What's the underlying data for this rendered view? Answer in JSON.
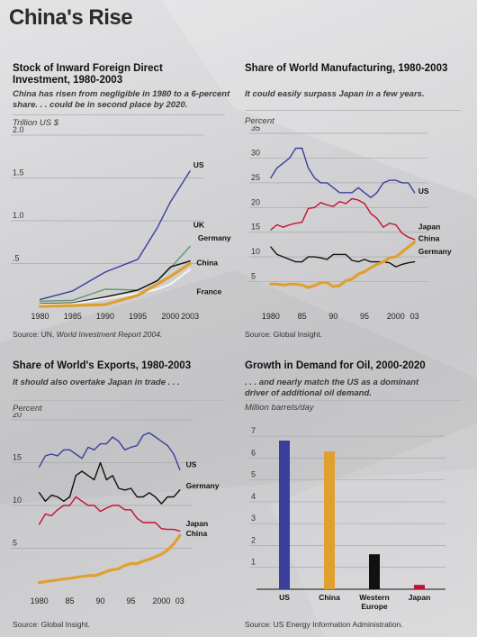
{
  "page": {
    "title": "China's Rise"
  },
  "panels": {
    "fdi": {
      "title_line1": "Stock of Inward Foreign Direct",
      "title_line2": "Investment, 1980-2003",
      "subtitle_line1": "China has risen from negligible in 1980 to a 6-percent",
      "subtitle_line2": "share. . . could be in second place by 2020.",
      "unit": "Trillion US $",
      "source_prefix": "Source: UN, ",
      "source_italic": "World Investment Report 2004."
    },
    "manufacturing": {
      "title": "Share of World Manufacturing, 1980-2003",
      "subtitle": "It could easily surpass Japan in a few years.",
      "unit": "Percent",
      "source": "Source: Global Insight."
    },
    "exports": {
      "title": "Share of World's Exports, 1980-2003",
      "subtitle": "It should also overtake Japan in trade . . .",
      "unit": "Percent",
      "source": "Source: Global Insight."
    },
    "oil": {
      "title": "Growth in Demand for Oil, 2000-2020",
      "subtitle_line1": ". . . and nearly match the US as a dominant",
      "subtitle_line2": "driver of additional oil demand.",
      "unit": "Million barrels/day",
      "source": "Source: US Energy Information Administration."
    }
  },
  "colors": {
    "US": "#3a3f9e",
    "UK": "#5a9a6a",
    "Germany": "#111111",
    "China": "#e0a030",
    "France": "#f4f4f4",
    "Japan": "#c4122f"
  },
  "chart_data": [
    {
      "id": "fdi",
      "type": "line",
      "ylabel": "Trillion US $",
      "ylim": [
        0,
        2.0
      ],
      "yticks": [
        {
          "v": 0.5,
          "label": ".5"
        },
        {
          "v": 1.0,
          "label": "1.0"
        },
        {
          "v": 1.5,
          "label": "1.5"
        },
        {
          "v": 2.0,
          "label": "2.0"
        }
      ],
      "xlim": [
        1978,
        2004.5
      ],
      "xticks": [
        {
          "v": 1980,
          "label": "1980"
        },
        {
          "v": 1985,
          "label": "1985"
        },
        {
          "v": 1990,
          "label": "1990"
        },
        {
          "v": 1995,
          "label": "1995"
        },
        {
          "v": 2000,
          "label": "2000"
        },
        {
          "v": 2003,
          "label": "2003"
        }
      ],
      "series": [
        {
          "name": "US",
          "color": "#3a3f9e",
          "width": 1.4,
          "x": [
            1980,
            1985,
            1990,
            1995,
            1998,
            2000,
            2003
          ],
          "y": [
            0.08,
            0.18,
            0.4,
            0.55,
            0.92,
            1.22,
            1.58
          ]
        },
        {
          "name": "UK",
          "color": "#5a9a6a",
          "width": 1.4,
          "x": [
            1980,
            1985,
            1990,
            1995,
            1998,
            2000,
            2003
          ],
          "y": [
            0.06,
            0.07,
            0.2,
            0.19,
            0.3,
            0.45,
            0.7
          ]
        },
        {
          "name": "Germany",
          "color": "#111111",
          "width": 1.4,
          "x": [
            1980,
            1985,
            1990,
            1995,
            1998,
            2000,
            2003
          ],
          "y": [
            0.03,
            0.04,
            0.11,
            0.19,
            0.3,
            0.46,
            0.53
          ]
        },
        {
          "name": "France",
          "color": "#f4f4f4",
          "width": 2.0,
          "x": [
            1980,
            1985,
            1990,
            1995,
            1998,
            2000,
            2003
          ],
          "y": [
            0.02,
            0.03,
            0.09,
            0.15,
            0.2,
            0.26,
            0.43
          ]
        },
        {
          "name": "China",
          "color": "#e0a030",
          "width": 3.2,
          "x": [
            1980,
            1985,
            1990,
            1995,
            1998,
            2000,
            2003
          ],
          "y": [
            0.0,
            0.01,
            0.02,
            0.13,
            0.26,
            0.35,
            0.5
          ]
        }
      ],
      "labels": [
        {
          "text": "US",
          "x": 2003.5,
          "y": 1.62
        },
        {
          "text": "UK",
          "x": 2003.5,
          "y": 0.92
        },
        {
          "text": "Germany",
          "x": 2004.2,
          "y": 0.77
        },
        {
          "text": "China",
          "x": 2004.0,
          "y": 0.48
        },
        {
          "text": "France",
          "x": 2004.0,
          "y": 0.14
        }
      ]
    },
    {
      "id": "manufacturing",
      "type": "line",
      "ylabel": "Percent",
      "ylim": [
        0,
        35
      ],
      "yticks": [
        {
          "v": 5,
          "label": "5"
        },
        {
          "v": 10,
          "label": "10"
        },
        {
          "v": 15,
          "label": "15"
        },
        {
          "v": 20,
          "label": "20"
        },
        {
          "v": 25,
          "label": "25"
        },
        {
          "v": 30,
          "label": "30"
        },
        {
          "v": 35,
          "label": "35"
        }
      ],
      "xlim": [
        1978,
        2004.5
      ],
      "xticks": [
        {
          "v": 1980,
          "label": "1980"
        },
        {
          "v": 1985,
          "label": "85"
        },
        {
          "v": 1990,
          "label": "90"
        },
        {
          "v": 1995,
          "label": "95"
        },
        {
          "v": 2000,
          "label": "2000"
        },
        {
          "v": 2003,
          "label": "03"
        }
      ],
      "series": [
        {
          "name": "US",
          "color": "#3a3f9e",
          "width": 1.4,
          "x": [
            1980,
            1981,
            1982,
            1983,
            1984,
            1985,
            1986,
            1987,
            1988,
            1989,
            1990,
            1991,
            1992,
            1993,
            1994,
            1995,
            1996,
            1997,
            1998,
            1999,
            2000,
            2001,
            2002,
            2003
          ],
          "y": [
            26,
            28,
            29,
            30,
            32,
            32,
            28,
            26,
            25,
            25,
            24,
            23,
            23,
            23,
            24,
            23,
            22,
            23,
            25,
            25.5,
            25.5,
            25,
            25,
            23
          ]
        },
        {
          "name": "Japan",
          "color": "#c4122f",
          "width": 1.4,
          "x": [
            1980,
            1981,
            1982,
            1983,
            1984,
            1985,
            1986,
            1987,
            1988,
            1989,
            1990,
            1991,
            1992,
            1993,
            1994,
            1995,
            1996,
            1997,
            1998,
            1999,
            2000,
            2001,
            2002,
            2003
          ],
          "y": [
            15.5,
            16.5,
            16,
            16.5,
            16.8,
            17,
            19.8,
            20,
            21,
            20.5,
            20.2,
            21.2,
            20.8,
            21.8,
            21.5,
            20.8,
            18.8,
            17.8,
            16,
            16.8,
            16.5,
            14.8,
            14,
            13.5
          ]
        },
        {
          "name": "Germany",
          "color": "#111111",
          "width": 1.4,
          "x": [
            1980,
            1981,
            1982,
            1983,
            1984,
            1985,
            1986,
            1987,
            1988,
            1989,
            1990,
            1991,
            1992,
            1993,
            1994,
            1995,
            1996,
            1997,
            1998,
            1999,
            2000,
            2001,
            2002,
            2003
          ],
          "y": [
            12,
            10.5,
            10,
            9.5,
            9,
            9,
            10,
            10,
            9.8,
            9.5,
            10.5,
            10.5,
            10.5,
            9.3,
            9,
            9.5,
            9,
            9,
            9,
            8.8,
            8,
            8.5,
            8.8,
            9
          ]
        },
        {
          "name": "China",
          "color": "#e0a030",
          "width": 3.2,
          "x": [
            1980,
            1981,
            1982,
            1983,
            1984,
            1985,
            1986,
            1987,
            1988,
            1989,
            1990,
            1991,
            1992,
            1993,
            1994,
            1995,
            1996,
            1997,
            1998,
            1999,
            2000,
            2001,
            2002,
            2003
          ],
          "y": [
            4.5,
            4.5,
            4.3,
            4.5,
            4.5,
            4.3,
            3.8,
            4.2,
            4.8,
            4.8,
            4,
            4.2,
            5.2,
            5.5,
            6.5,
            7,
            7.8,
            8.5,
            9,
            9.8,
            10,
            11,
            12,
            13
          ]
        }
      ],
      "labels": [
        {
          "text": "US",
          "x": 2003.6,
          "y": 22.8
        },
        {
          "text": "Japan",
          "x": 2003.6,
          "y": 15.6
        },
        {
          "text": "China",
          "x": 2003.6,
          "y": 13.2
        },
        {
          "text": "Germany",
          "x": 2003.6,
          "y": 10.6
        }
      ]
    },
    {
      "id": "exports",
      "type": "line",
      "ylabel": "Percent",
      "ylim": [
        0,
        20
      ],
      "yticks": [
        {
          "v": 5,
          "label": "5"
        },
        {
          "v": 10,
          "label": "10"
        },
        {
          "v": 15,
          "label": "15"
        },
        {
          "v": 20,
          "label": "20"
        }
      ],
      "xlim": [
        1978,
        2004.5
      ],
      "xticks": [
        {
          "v": 1980,
          "label": "1980"
        },
        {
          "v": 1985,
          "label": "85"
        },
        {
          "v": 1990,
          "label": "90"
        },
        {
          "v": 1995,
          "label": "95"
        },
        {
          "v": 2000,
          "label": "2000"
        },
        {
          "v": 2003,
          "label": "03"
        }
      ],
      "series": [
        {
          "name": "US",
          "color": "#3a3f9e",
          "width": 1.4,
          "x": [
            1980,
            1981,
            1982,
            1983,
            1984,
            1985,
            1986,
            1987,
            1988,
            1989,
            1990,
            1991,
            1992,
            1993,
            1994,
            1995,
            1996,
            1997,
            1998,
            1999,
            2000,
            2001,
            2002,
            2003
          ],
          "y": [
            14.5,
            15.8,
            16,
            15.8,
            16.5,
            16.5,
            16,
            15.5,
            16.8,
            16.5,
            17.2,
            17.2,
            18,
            17.5,
            16.5,
            16.8,
            17,
            18.2,
            18.5,
            18,
            17.5,
            17,
            16,
            14.2
          ]
        },
        {
          "name": "Germany",
          "color": "#111111",
          "width": 1.4,
          "x": [
            1980,
            1981,
            1982,
            1983,
            1984,
            1985,
            1986,
            1987,
            1988,
            1989,
            1990,
            1991,
            1992,
            1993,
            1994,
            1995,
            1996,
            1997,
            1998,
            1999,
            2000,
            2001,
            2002,
            2003
          ],
          "y": [
            11.5,
            10.5,
            11.2,
            11,
            10.5,
            11,
            13.5,
            14,
            13.5,
            13,
            15,
            13,
            13.5,
            12,
            11.8,
            12,
            11,
            11,
            11.5,
            11,
            10.2,
            11,
            11,
            11.8
          ]
        },
        {
          "name": "Japan",
          "color": "#c4122f",
          "width": 1.4,
          "x": [
            1980,
            1981,
            1982,
            1983,
            1984,
            1985,
            1986,
            1987,
            1988,
            1989,
            1990,
            1991,
            1992,
            1993,
            1994,
            1995,
            1996,
            1997,
            1998,
            1999,
            2000,
            2001,
            2002,
            2003
          ],
          "y": [
            7.8,
            9,
            8.8,
            9.5,
            10,
            10,
            11,
            10.5,
            10,
            10,
            9.3,
            9.7,
            10,
            10,
            9.5,
            9.5,
            8.5,
            8,
            8,
            8,
            7.3,
            7.2,
            7.2,
            7
          ]
        },
        {
          "name": "China",
          "color": "#e0a030",
          "width": 3.2,
          "x": [
            1980,
            1981,
            1982,
            1983,
            1984,
            1985,
            1986,
            1987,
            1988,
            1989,
            1990,
            1991,
            1992,
            1993,
            1994,
            1995,
            1996,
            1997,
            1998,
            1999,
            2000,
            2001,
            2002,
            2003
          ],
          "y": [
            1,
            1.1,
            1.2,
            1.3,
            1.4,
            1.5,
            1.6,
            1.7,
            1.8,
            1.8,
            2,
            2.3,
            2.5,
            2.6,
            3,
            3.2,
            3.2,
            3.5,
            3.7,
            4,
            4.3,
            4.8,
            5.5,
            6.5
          ]
        }
      ],
      "labels": [
        {
          "text": "US",
          "x": 2004.0,
          "y": 14.5
        },
        {
          "text": "Germany",
          "x": 2004.0,
          "y": 12.0
        },
        {
          "text": "Japan",
          "x": 2004.0,
          "y": 7.6
        },
        {
          "text": "China",
          "x": 2004.0,
          "y": 6.4
        }
      ]
    },
    {
      "id": "oil",
      "type": "bar",
      "ylabel": "Million barrels/day",
      "ylim": [
        0,
        7.5
      ],
      "yticks": [
        {
          "v": 1,
          "label": "1"
        },
        {
          "v": 2,
          "label": "2"
        },
        {
          "v": 3,
          "label": "3"
        },
        {
          "v": 4,
          "label": "4"
        },
        {
          "v": 5,
          "label": "5"
        },
        {
          "v": 6,
          "label": "6"
        },
        {
          "v": 7,
          "label": "7"
        }
      ],
      "categories": [
        "US",
        "China",
        "Western Europe",
        "Japan"
      ],
      "category_lines": [
        [
          "US"
        ],
        [
          "China"
        ],
        [
          "Western",
          "Europe"
        ],
        [
          "Japan"
        ]
      ],
      "values": [
        6.8,
        6.3,
        1.6,
        0.2
      ],
      "colors": [
        "#3a3f9e",
        "#e0a030",
        "#111111",
        "#c4122f"
      ]
    }
  ]
}
